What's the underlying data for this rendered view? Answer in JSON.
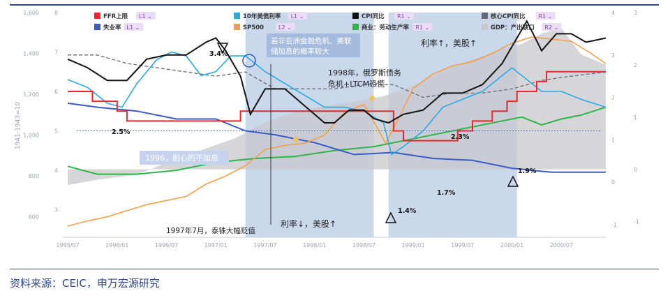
{
  "footer": {
    "source": "资料来源：CEIC，申万宏源研究"
  },
  "colors": {
    "ffr": "#e8262b",
    "unemp": "#3a5bc7",
    "ust10": "#2aa9e6",
    "sp500": "#f0a04b",
    "cpi": "#111111",
    "labor": "#2fb34a",
    "corecpi": "#666677",
    "gap": "#c8c8cc",
    "shade": "#b8cbe6"
  },
  "chart_data": {
    "type": "line",
    "title": "",
    "axes": {
      "left_outer": {
        "label": "1941-1943=10",
        "ticks": [
          "600",
          "800",
          "1,000",
          "1,200",
          "1,400",
          "1,600"
        ],
        "ylim": [
          500,
          1600
        ],
        "series": [
          "SP500"
        ]
      },
      "left_inner": {
        "ticks": [
          "3",
          "4",
          "5",
          "6",
          "7",
          "8"
        ],
        "ylim": [
          2.3,
          8
        ],
        "series": [
          "FFR上限",
          "失业率",
          "10年美债利率",
          "CPI同比",
          "商业：劳动生产率"
        ]
      },
      "right_inner": {
        "ticks": [
          "-1",
          "0",
          "1",
          "2",
          "3",
          "4"
        ],
        "ylim": [
          -1.3,
          4
        ],
        "series": [
          "CPI同比",
          "核心CPI同比"
        ]
      },
      "right_outer": {
        "ticks": [
          "-1",
          "0",
          "1",
          "2",
          "3"
        ],
        "ylim": [
          -1.3,
          3
        ],
        "series": [
          "GDP：产出缺口"
        ]
      },
      "x_ticks": [
        "1995/07",
        "1996/01",
        "1996/07",
        "1997/01",
        "1997/07",
        "1998/01",
        "1998/07",
        "1999/01",
        "1999/07",
        "2000/01",
        "2000/07"
      ],
      "xlim": [
        1995.45,
        2000.95
      ]
    },
    "legend": [
      {
        "name": "FFR上限",
        "axis": "L1"
      },
      {
        "name": "10年美债利率",
        "axis": "L1"
      },
      {
        "name": "CPI同比",
        "axis": "R1"
      },
      {
        "name": "核心CPI同比",
        "axis": "R1"
      },
      {
        "name": "失业率",
        "axis": "L1"
      },
      {
        "name": "SP500",
        "axis": "L2"
      },
      {
        "name": "商业：劳动生产率",
        "axis": "R1"
      },
      {
        "name": "GDP：产出缺口",
        "axis": "R2"
      }
    ],
    "shaded_periods": [
      [
        1997.3,
        1998.6
      ],
      [
        1998.75,
        2000.05
      ]
    ],
    "series": {
      "ffr": {
        "x": [
          1995.5,
          1995.75,
          1995.92,
          1996.0,
          1996.1,
          1996.8,
          1997.25,
          1998.5,
          1998.8,
          1998.9,
          1999.45,
          1999.6,
          1999.8,
          1999.95,
          2000.05,
          2000.25,
          2000.35,
          2000.95
        ],
        "y": [
          6.0,
          5.75,
          5.75,
          5.5,
          5.25,
          5.25,
          5.5,
          5.5,
          5.0,
          4.75,
          5.0,
          5.25,
          5.5,
          5.75,
          6.0,
          6.25,
          6.5,
          6.5
        ]
      },
      "unemp": {
        "x": [
          1995.5,
          1995.8,
          1996.2,
          1996.6,
          1997.0,
          1997.3,
          1997.6,
          1998.0,
          1998.4,
          1998.8,
          1999.2,
          1999.6,
          2000.0,
          2000.4,
          2000.95
        ],
        "y": [
          5.7,
          5.6,
          5.5,
          5.3,
          5.3,
          5.0,
          4.9,
          4.7,
          4.4,
          4.45,
          4.3,
          4.25,
          4.05,
          3.95,
          3.95
        ]
      },
      "ust10": {
        "x": [
          1995.5,
          1995.7,
          1995.9,
          1996.05,
          1996.2,
          1996.4,
          1996.55,
          1996.7,
          1996.85,
          1997.0,
          1997.15,
          1997.3,
          1997.5,
          1997.7,
          1997.9,
          1998.1,
          1998.3,
          1998.5,
          1998.7,
          1998.78,
          1998.9,
          1999.1,
          1999.3,
          1999.5,
          1999.7,
          1999.85,
          2000.0,
          2000.15,
          2000.3,
          2000.5,
          2000.7,
          2000.95
        ],
        "y": [
          6.3,
          6.1,
          5.7,
          5.6,
          6.2,
          6.8,
          7.0,
          6.9,
          6.4,
          6.5,
          6.9,
          6.9,
          6.5,
          6.2,
          5.9,
          5.6,
          5.6,
          5.5,
          5.2,
          4.4,
          4.6,
          5.0,
          5.6,
          5.8,
          6.0,
          6.3,
          6.6,
          6.3,
          6.0,
          6.0,
          5.8,
          5.6
        ]
      },
      "sp500": {
        "x": [
          1995.5,
          1995.7,
          1995.9,
          1996.1,
          1996.3,
          1996.5,
          1996.7,
          1996.9,
          1997.1,
          1997.3,
          1997.5,
          1997.7,
          1997.9,
          1998.1,
          1998.3,
          1998.5,
          1998.62,
          1998.72,
          1998.85,
          1999.0,
          1999.2,
          1999.4,
          1999.6,
          1999.8,
          2000.0,
          2000.2,
          2000.4,
          2000.6,
          2000.8,
          2000.95
        ],
        "y": [
          555,
          580,
          600,
          630,
          660,
          680,
          700,
          760,
          800,
          850,
          930,
          950,
          960,
          1000,
          1110,
          1150,
          1050,
          960,
          1080,
          1230,
          1300,
          1340,
          1360,
          1400,
          1450,
          1480,
          1470,
          1460,
          1400,
          1350
        ]
      },
      "cpi": {
        "x": [
          1995.5,
          1995.7,
          1995.9,
          1996.1,
          1996.3,
          1996.5,
          1996.7,
          1996.9,
          1997.0,
          1997.1,
          1997.25,
          1997.35,
          1997.5,
          1997.7,
          1997.9,
          1998.0,
          1998.1,
          1998.2,
          1998.35,
          1998.5,
          1998.6,
          1998.75,
          1998.9,
          1999.1,
          1999.3,
          1999.5,
          1999.7,
          1999.9,
          2000.0,
          2000.15,
          2000.3,
          2000.45,
          2000.6,
          2000.75,
          2000.95
        ],
        "y": [
          2.9,
          2.7,
          2.4,
          2.4,
          2.9,
          3.0,
          3.0,
          3.3,
          3.4,
          3.1,
          2.5,
          1.6,
          2.2,
          2.2,
          1.8,
          1.6,
          1.4,
          1.4,
          1.7,
          1.7,
          1.5,
          1.4,
          1.6,
          1.7,
          2.1,
          2.1,
          2.3,
          2.8,
          3.2,
          3.8,
          3.1,
          3.5,
          3.5,
          3.3,
          3.4
        ]
      },
      "corecpi": {
        "x": [
          1995.5,
          1995.8,
          1996.1,
          1996.4,
          1996.7,
          1997.0,
          1997.3,
          1997.6,
          1997.9,
          1998.2,
          1998.5,
          1998.8,
          1999.1,
          1999.4,
          1999.7,
          2000.0,
          2000.3,
          2000.6,
          2000.95
        ],
        "y": [
          3.0,
          3.0,
          2.8,
          2.7,
          2.6,
          2.5,
          2.6,
          2.2,
          2.2,
          2.2,
          2.3,
          2.3,
          2.0,
          2.1,
          2.1,
          2.2,
          2.4,
          2.5,
          2.6
        ]
      },
      "labor": {
        "x": [
          1995.5,
          1995.8,
          1996.2,
          1996.6,
          1997.0,
          1997.4,
          1997.8,
          1998.2,
          1998.6,
          1999.0,
          1999.4,
          1999.8,
          2000.1,
          2000.3,
          2000.5,
          2000.7,
          2000.95
        ],
        "y": [
          4.1,
          3.9,
          3.9,
          4.0,
          4.2,
          4.3,
          4.35,
          4.5,
          4.6,
          4.8,
          5.0,
          5.2,
          5.35,
          5.15,
          5.3,
          5.4,
          5.6
        ]
      },
      "gap": {
        "x": [
          1995.5,
          1995.8,
          1996.2,
          1996.6,
          1996.9,
          1997.2,
          1997.5,
          1997.8,
          1998.1,
          1998.4,
          1998.7,
          1999.0,
          1999.3,
          1999.6,
          1999.9,
          2000.1,
          2000.3,
          2000.5,
          2000.7,
          2000.95
        ],
        "y": [
          -0.3,
          -0.2,
          -0.1,
          0.2,
          0.4,
          0.6,
          0.9,
          1.1,
          1.2,
          1.3,
          1.4,
          1.6,
          1.9,
          2.1,
          2.3,
          2.4,
          2.6,
          2.7,
          2.2,
          2.0
        ]
      }
    },
    "annotations": [
      {
        "text": "若非亚洲金融危机、美联储加息的概率较大"
      },
      {
        "text": "1998年，俄罗斯债务危机+LTCM恐慌"
      },
      {
        "text": "利率↑，美股↑"
      },
      {
        "text": "利率↓，美股↑"
      },
      {
        "text": "1996，耐心的不加息"
      },
      {
        "text": "1997年7月，泰铢大幅贬值"
      },
      {
        "text": "3.4%"
      },
      {
        "text": "2.5%"
      },
      {
        "text": "2.3%"
      },
      {
        "text": "1.7%"
      },
      {
        "text": "1.4%"
      },
      {
        "text": "1.9%"
      }
    ]
  }
}
